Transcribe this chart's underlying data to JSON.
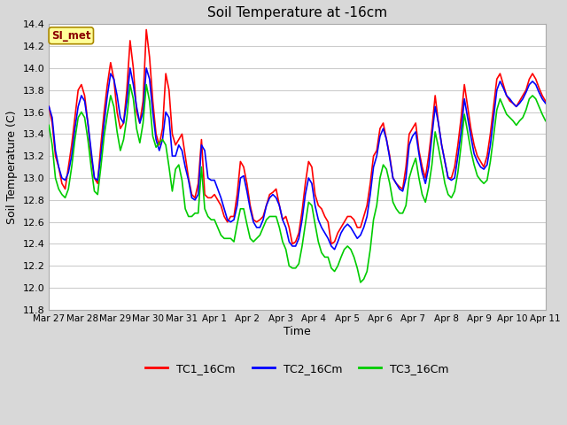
{
  "title": "Soil Temperature at -16cm",
  "xlabel": "Time",
  "ylabel": "Soil Temperature (C)",
  "ylim": [
    11.8,
    14.4
  ],
  "yticks": [
    11.8,
    12.0,
    12.2,
    12.4,
    12.6,
    12.8,
    13.0,
    13.2,
    13.4,
    13.6,
    13.8,
    14.0,
    14.2,
    14.4
  ],
  "xtick_labels": [
    "Mar 27",
    "Mar 28",
    "Mar 29",
    "Mar 30",
    "Mar 31",
    "Apr 1",
    "Apr 2",
    "Apr 3",
    "Apr 4",
    "Apr 5",
    "Apr 6",
    "Apr 7",
    "Apr 8",
    "Apr 9",
    "Apr 10",
    "Apr 11"
  ],
  "line_colors": [
    "#ff0000",
    "#0000ff",
    "#00cc00"
  ],
  "line_width": 1.2,
  "fig_bg_color": "#d8d8d8",
  "plot_bg_color": "#ffffff",
  "legend_labels": [
    "TC1_16Cm",
    "TC2_16Cm",
    "TC3_16Cm"
  ],
  "watermark_text": "SI_met",
  "watermark_bg": "#ffff99",
  "watermark_border": "#aa8800",
  "watermark_text_color": "#8b0000",
  "tc1": [
    13.65,
    13.5,
    13.2,
    13.1,
    12.95,
    12.9,
    13.1,
    13.3,
    13.55,
    13.8,
    13.85,
    13.75,
    13.5,
    13.2,
    13.0,
    12.95,
    13.3,
    13.6,
    13.85,
    14.05,
    13.9,
    13.6,
    13.45,
    13.5,
    13.8,
    14.25,
    14.0,
    13.6,
    13.5,
    13.7,
    14.35,
    14.1,
    13.7,
    13.4,
    13.3,
    13.45,
    13.95,
    13.8,
    13.4,
    13.3,
    13.35,
    13.4,
    13.2,
    13.0,
    12.85,
    12.82,
    12.95,
    13.35,
    12.85,
    12.82,
    12.82,
    12.85,
    12.8,
    12.75,
    12.65,
    12.6,
    12.65,
    12.65,
    12.85,
    13.15,
    13.1,
    12.95,
    12.75,
    12.62,
    12.6,
    12.62,
    12.65,
    12.75,
    12.85,
    12.87,
    12.9,
    12.75,
    12.62,
    12.65,
    12.55,
    12.4,
    12.42,
    12.5,
    12.7,
    12.95,
    13.15,
    13.1,
    12.85,
    12.75,
    12.72,
    12.65,
    12.6,
    12.4,
    12.42,
    12.5,
    12.55,
    12.6,
    12.65,
    12.65,
    12.62,
    12.55,
    12.55,
    12.65,
    12.75,
    12.95,
    13.2,
    13.25,
    13.45,
    13.5,
    13.35,
    13.2,
    13.0,
    12.95,
    12.92,
    12.9,
    13.1,
    13.4,
    13.45,
    13.5,
    13.25,
    13.1,
    13.0,
    13.2,
    13.45,
    13.75,
    13.5,
    13.3,
    13.15,
    13.0,
    13.0,
    13.1,
    13.3,
    13.55,
    13.85,
    13.65,
    13.45,
    13.3,
    13.2,
    13.15,
    13.1,
    13.2,
    13.4,
    13.65,
    13.9,
    13.95,
    13.85,
    13.75,
    13.7,
    13.68,
    13.65,
    13.7,
    13.75,
    13.8,
    13.9,
    13.95,
    13.9,
    13.82,
    13.75,
    13.7
  ],
  "tc2": [
    13.65,
    13.55,
    13.25,
    13.1,
    13.0,
    12.98,
    13.05,
    13.2,
    13.45,
    13.65,
    13.75,
    13.7,
    13.5,
    13.25,
    13.0,
    12.98,
    13.2,
    13.5,
    13.75,
    13.95,
    13.9,
    13.75,
    13.55,
    13.5,
    13.7,
    14.0,
    13.85,
    13.65,
    13.5,
    13.6,
    14.0,
    13.9,
    13.6,
    13.35,
    13.25,
    13.35,
    13.6,
    13.55,
    13.2,
    13.2,
    13.3,
    13.25,
    13.1,
    12.98,
    12.82,
    12.8,
    12.85,
    13.3,
    13.25,
    13.0,
    12.98,
    12.98,
    12.9,
    12.82,
    12.72,
    12.62,
    12.6,
    12.62,
    12.75,
    13.0,
    13.02,
    12.88,
    12.72,
    12.6,
    12.55,
    12.55,
    12.62,
    12.75,
    12.82,
    12.85,
    12.82,
    12.75,
    12.62,
    12.55,
    12.42,
    12.38,
    12.38,
    12.45,
    12.62,
    12.85,
    13.0,
    12.95,
    12.75,
    12.62,
    12.55,
    12.5,
    12.45,
    12.38,
    12.35,
    12.42,
    12.5,
    12.55,
    12.58,
    12.55,
    12.5,
    12.45,
    12.48,
    12.55,
    12.65,
    12.85,
    13.1,
    13.2,
    13.38,
    13.45,
    13.35,
    13.18,
    13.0,
    12.95,
    12.9,
    12.88,
    13.0,
    13.3,
    13.38,
    13.42,
    13.22,
    13.05,
    12.95,
    13.1,
    13.38,
    13.65,
    13.5,
    13.3,
    13.15,
    13.0,
    12.98,
    13.0,
    13.2,
    13.42,
    13.72,
    13.55,
    13.38,
    13.22,
    13.15,
    13.1,
    13.08,
    13.12,
    13.3,
    13.55,
    13.8,
    13.88,
    13.82,
    13.75,
    13.72,
    13.68,
    13.65,
    13.68,
    13.72,
    13.78,
    13.85,
    13.88,
    13.85,
    13.78,
    13.72,
    13.68
  ],
  "tc3": [
    13.48,
    13.3,
    13.0,
    12.9,
    12.85,
    12.82,
    12.9,
    13.1,
    13.35,
    13.55,
    13.6,
    13.55,
    13.35,
    13.1,
    12.88,
    12.85,
    13.1,
    13.38,
    13.58,
    13.75,
    13.65,
    13.42,
    13.25,
    13.35,
    13.55,
    13.85,
    13.72,
    13.45,
    13.32,
    13.5,
    13.85,
    13.7,
    13.38,
    13.28,
    13.32,
    13.35,
    13.3,
    13.1,
    12.88,
    13.08,
    13.12,
    12.98,
    12.72,
    12.65,
    12.65,
    12.68,
    12.68,
    13.1,
    12.72,
    12.65,
    12.62,
    12.62,
    12.55,
    12.48,
    12.45,
    12.45,
    12.45,
    12.42,
    12.58,
    12.72,
    12.72,
    12.58,
    12.45,
    12.42,
    12.45,
    12.48,
    12.55,
    12.62,
    12.65,
    12.65,
    12.65,
    12.55,
    12.42,
    12.35,
    12.2,
    12.18,
    12.18,
    12.22,
    12.38,
    12.58,
    12.78,
    12.75,
    12.58,
    12.42,
    12.32,
    12.28,
    12.28,
    12.18,
    12.15,
    12.2,
    12.28,
    12.35,
    12.38,
    12.35,
    12.28,
    12.18,
    12.05,
    12.08,
    12.15,
    12.35,
    12.62,
    12.75,
    13.0,
    13.12,
    13.08,
    12.95,
    12.78,
    12.72,
    12.68,
    12.68,
    12.75,
    13.0,
    13.1,
    13.18,
    13.0,
    12.85,
    12.78,
    12.92,
    13.12,
    13.42,
    13.28,
    13.12,
    12.95,
    12.85,
    12.82,
    12.88,
    13.05,
    13.3,
    13.58,
    13.42,
    13.25,
    13.12,
    13.02,
    12.98,
    12.95,
    12.98,
    13.15,
    13.38,
    13.62,
    13.72,
    13.65,
    13.58,
    13.55,
    13.52,
    13.48,
    13.52,
    13.55,
    13.62,
    13.72,
    13.75,
    13.72,
    13.65,
    13.58,
    13.52
  ]
}
